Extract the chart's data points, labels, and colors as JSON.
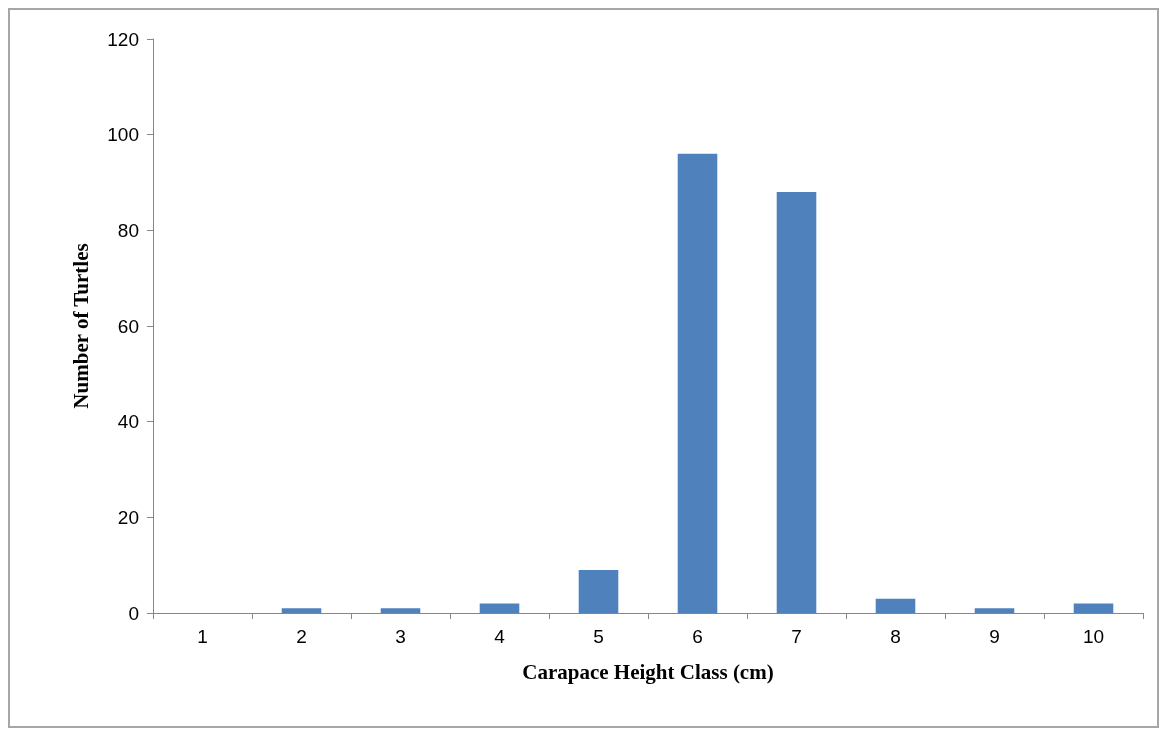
{
  "chart_data": {
    "type": "bar",
    "xlabel": "Carapace Height Class (cm)",
    "ylabel": "Number of Turtles",
    "categories": [
      "1",
      "2",
      "3",
      "4",
      "5",
      "6",
      "7",
      "8",
      "9",
      "10"
    ],
    "values": [
      0,
      1,
      1,
      2,
      9,
      96,
      88,
      3,
      1,
      2
    ],
    "color": "#4f81bd",
    "ylim": [
      0,
      120
    ],
    "yticks": [
      0,
      20,
      40,
      60,
      80,
      100,
      120
    ],
    "grid": false
  }
}
